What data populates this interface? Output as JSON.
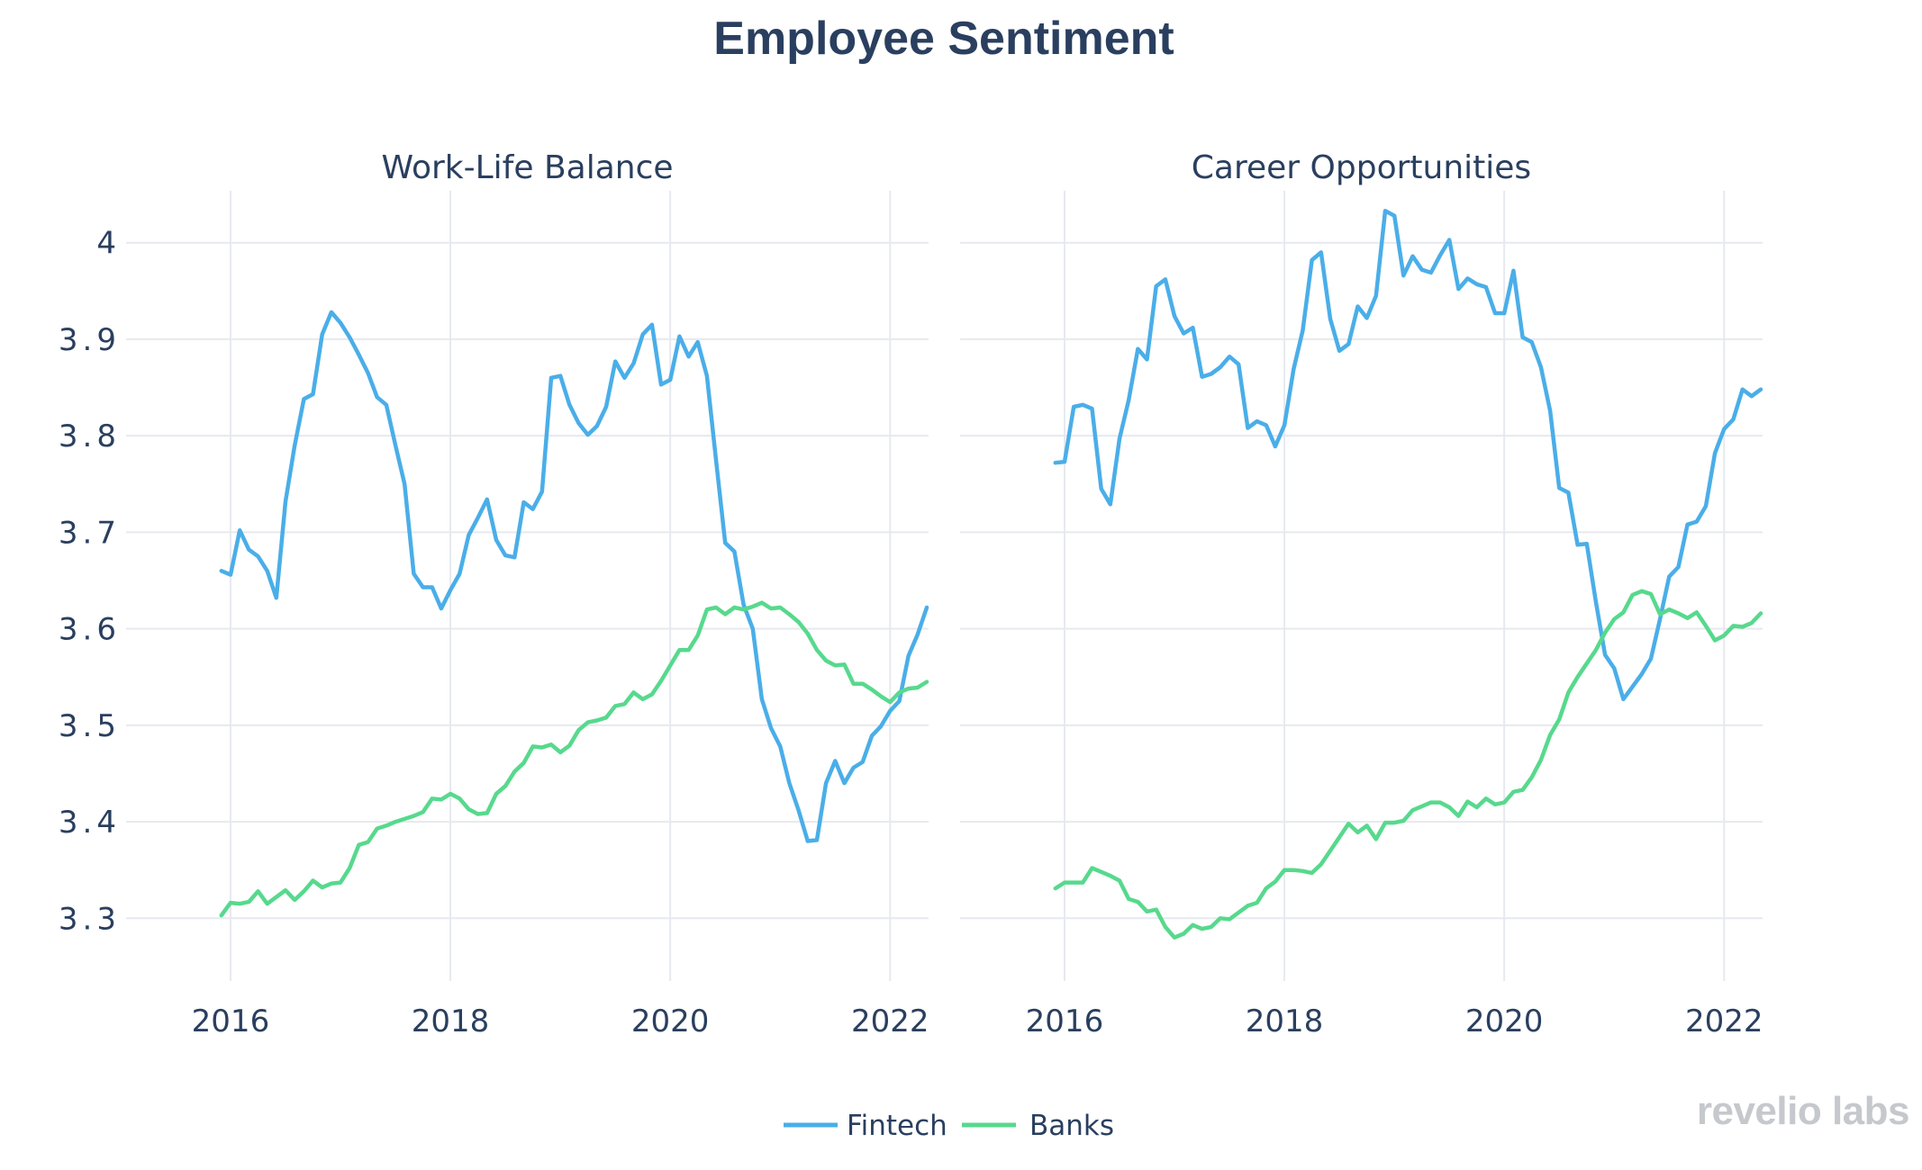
{
  "title": "Employee Sentiment",
  "watermark": "revelio labs",
  "colors": {
    "fintech": "#4aaee8",
    "banks": "#57d98d",
    "text": "#2a3f5f",
    "grid": "#e6e9ef"
  },
  "legend": [
    {
      "name": "Fintech",
      "color": "#4aaee8"
    },
    {
      "name": "Banks",
      "color": "#57d98d"
    }
  ],
  "chart_data": [
    {
      "type": "line",
      "title": "Work-Life Balance",
      "xlabel": "",
      "ylabel": "",
      "xlim": [
        2015.05,
        2022.35
      ],
      "ylim": [
        3.235,
        4.065
      ],
      "xticks": [
        2016,
        2018,
        2020,
        2022
      ],
      "yticks": [
        3.3,
        3.4,
        3.5,
        3.6,
        3.7,
        3.8,
        3.9,
        4
      ],
      "ytick_labels": [
        "3.3",
        "3.4",
        "3.5",
        "3.6",
        "3.7",
        "3.8",
        "3.9",
        "4"
      ],
      "start": 2015.917,
      "step": 0.0833333,
      "series": [
        {
          "name": "Fintech",
          "values": [
            3.66,
            3.656,
            3.702,
            3.682,
            3.675,
            3.66,
            3.632,
            3.732,
            3.79,
            3.838,
            3.843,
            3.905,
            3.928,
            3.917,
            3.902,
            3.884,
            3.865,
            3.84,
            3.832,
            3.79,
            3.75,
            3.657,
            3.643,
            3.643,
            3.621,
            3.64,
            3.657,
            3.697,
            3.715,
            3.734,
            3.692,
            3.676,
            3.674,
            3.731,
            3.724,
            3.742,
            3.86,
            3.862,
            3.832,
            3.813,
            3.801,
            3.81,
            3.83,
            3.877,
            3.86,
            3.875,
            3.905,
            3.915,
            3.853,
            3.858,
            3.903,
            3.882,
            3.897,
            3.862,
            3.774,
            3.689,
            3.68,
            3.625,
            3.6,
            3.527,
            3.497,
            3.478,
            3.44,
            3.412,
            3.38,
            3.381,
            3.44,
            3.463,
            3.44,
            3.456,
            3.462,
            3.489,
            3.499,
            3.515,
            3.525,
            3.572,
            3.594,
            3.622
          ]
        },
        {
          "name": "Banks",
          "values": [
            3.303,
            3.316,
            3.315,
            3.317,
            3.328,
            3.315,
            3.322,
            3.329,
            3.319,
            3.328,
            3.339,
            3.332,
            3.336,
            3.337,
            3.352,
            3.376,
            3.379,
            3.393,
            3.396,
            3.4,
            3.403,
            3.406,
            3.41,
            3.424,
            3.423,
            3.429,
            3.424,
            3.413,
            3.408,
            3.409,
            3.429,
            3.437,
            3.452,
            3.461,
            3.478,
            3.477,
            3.48,
            3.472,
            3.479,
            3.495,
            3.503,
            3.505,
            3.508,
            3.52,
            3.522,
            3.534,
            3.527,
            3.532,
            3.546,
            3.562,
            3.578,
            3.578,
            3.593,
            3.62,
            3.622,
            3.615,
            3.622,
            3.62,
            3.623,
            3.627,
            3.621,
            3.622,
            3.615,
            3.607,
            3.595,
            3.578,
            3.567,
            3.562,
            3.563,
            3.543,
            3.543,
            3.537,
            3.53,
            3.524,
            3.534,
            3.538,
            3.539,
            3.545
          ]
        }
      ]
    },
    {
      "type": "line",
      "title": "Career Opportunities",
      "xlabel": "",
      "ylabel": "",
      "xlim": [
        2015.05,
        2022.35
      ],
      "ylim": [
        3.235,
        4.065
      ],
      "xticks": [
        2016,
        2018,
        2020,
        2022
      ],
      "yticks": [
        3.3,
        3.4,
        3.5,
        3.6,
        3.7,
        3.8,
        3.9,
        4
      ],
      "start": 2015.917,
      "step": 0.0833333,
      "series": [
        {
          "name": "Fintech",
          "values": [
            3.772,
            3.773,
            3.83,
            3.832,
            3.828,
            3.745,
            3.729,
            3.797,
            3.837,
            3.89,
            3.879,
            3.955,
            3.962,
            3.924,
            3.906,
            3.912,
            3.861,
            3.864,
            3.871,
            3.882,
            3.874,
            3.808,
            3.815,
            3.811,
            3.789,
            3.811,
            3.869,
            3.909,
            3.982,
            3.99,
            3.921,
            3.888,
            3.895,
            3.934,
            3.922,
            3.945,
            4.033,
            4.028,
            3.966,
            3.986,
            3.972,
            3.969,
            3.987,
            4.003,
            3.952,
            3.963,
            3.957,
            3.954,
            3.927,
            3.927,
            3.971,
            3.902,
            3.897,
            3.871,
            3.826,
            3.746,
            3.741,
            3.687,
            3.688,
            3.628,
            3.573,
            3.559,
            3.527,
            3.54,
            3.553,
            3.569,
            3.61,
            3.654,
            3.664,
            3.708,
            3.711,
            3.727,
            3.782,
            3.807,
            3.817,
            3.848,
            3.841,
            3.848
          ]
        },
        {
          "name": "Banks",
          "values": [
            3.331,
            3.337,
            3.337,
            3.337,
            3.352,
            3.348,
            3.344,
            3.339,
            3.32,
            3.317,
            3.307,
            3.309,
            3.291,
            3.28,
            3.284,
            3.293,
            3.289,
            3.291,
            3.3,
            3.299,
            3.306,
            3.313,
            3.316,
            3.331,
            3.338,
            3.35,
            3.35,
            3.349,
            3.347,
            3.356,
            3.37,
            3.384,
            3.398,
            3.389,
            3.396,
            3.382,
            3.399,
            3.399,
            3.401,
            3.412,
            3.416,
            3.42,
            3.42,
            3.415,
            3.406,
            3.421,
            3.415,
            3.424,
            3.418,
            3.42,
            3.431,
            3.433,
            3.446,
            3.464,
            3.49,
            3.506,
            3.534,
            3.55,
            3.564,
            3.578,
            3.596,
            3.61,
            3.617,
            3.635,
            3.639,
            3.636,
            3.615,
            3.62,
            3.616,
            3.611,
            3.617,
            3.603,
            3.588,
            3.593,
            3.603,
            3.602,
            3.606,
            3.616
          ]
        }
      ]
    }
  ]
}
